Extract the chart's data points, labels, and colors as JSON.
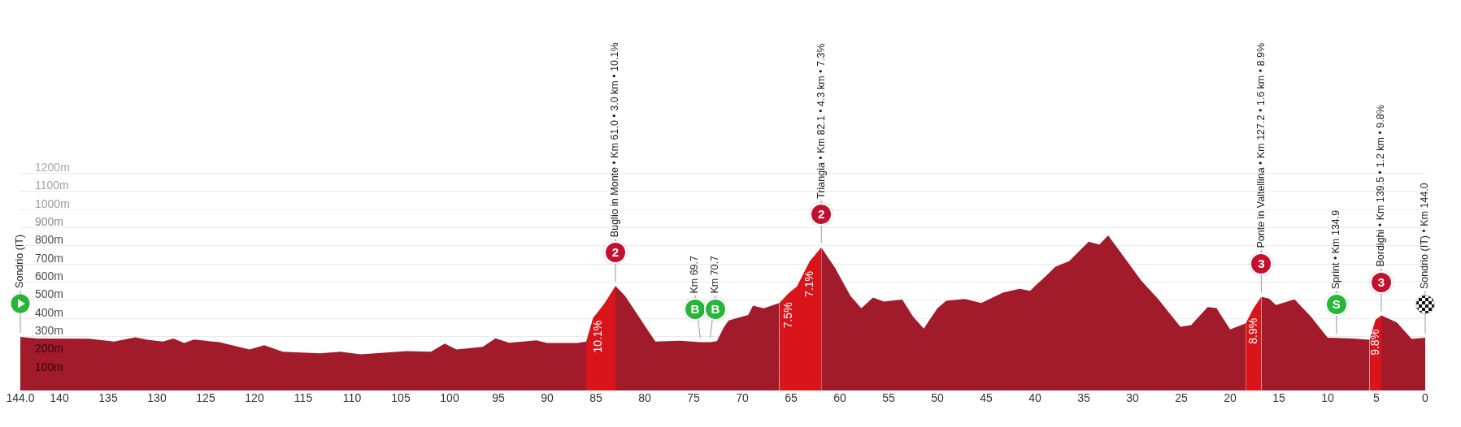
{
  "chart_data": {
    "type": "area",
    "xlim": [
      144,
      0
    ],
    "xticks": [
      {
        "value": 144,
        "label": "144.0"
      },
      140,
      135,
      130,
      125,
      120,
      115,
      110,
      105,
      100,
      95,
      90,
      85,
      80,
      75,
      70,
      65,
      60,
      55,
      50,
      45,
      40,
      35,
      30,
      25,
      20,
      15,
      10,
      5,
      0
    ],
    "ylim": [
      0,
      1200
    ],
    "yticks": [
      {
        "value": 100,
        "label": "100m"
      },
      {
        "value": 200,
        "label": "200m"
      },
      {
        "value": 300,
        "label": "300m"
      },
      {
        "value": 400,
        "label": "400m"
      },
      {
        "value": 500,
        "label": "500m"
      },
      {
        "value": 600,
        "label": "600m"
      },
      {
        "value": 700,
        "label": "700m"
      },
      {
        "value": 800,
        "label": "800m"
      },
      {
        "value": 900,
        "label": "900m"
      },
      {
        "value": 1000,
        "label": "1000m"
      },
      {
        "value": 1100,
        "label": "1100m"
      },
      {
        "value": 1200,
        "label": "1200m"
      }
    ],
    "grid": "y",
    "series": [
      {
        "color": "#a21b2b",
        "x": [
          144,
          142.3,
          136.9,
          134.4,
          132.2,
          131,
          129.4,
          128.3,
          127.2,
          126.2,
          123.6,
          120.5,
          119,
          117.1,
          113.3,
          111.2,
          109.1,
          104.4,
          101.9,
          100.5,
          99.3,
          96.6,
          95.3,
          93.9,
          91.1,
          90,
          86.9,
          86,
          85.3,
          83,
          82,
          80.8,
          79.8,
          78.9,
          76.4,
          74.3,
          73.3,
          72.6,
          71.9,
          71.4,
          69.4,
          68.9,
          67.8,
          66.2,
          64.4,
          61.9,
          60.5,
          58.9,
          57.8,
          56.6,
          55.5,
          53.6,
          52.5,
          51.4,
          50,
          49.1,
          47.2,
          45.5,
          43.3,
          41.6,
          40.5,
          39.7,
          38.9,
          37.9,
          36.5,
          34.5,
          33.4,
          32.5,
          31.4,
          29.1,
          27.4,
          25.1,
          24,
          22.3,
          21.4,
          20,
          18.4,
          17.6,
          16.8,
          16,
          15.3,
          13.4,
          11.7,
          10,
          9.1,
          7.4,
          5.7,
          5.1,
          4.5,
          2.9,
          1.4,
          0
        ],
        "values": [
          296,
          287,
          285,
          270,
          293,
          280,
          270,
          287,
          262,
          281,
          266,
          226,
          250,
          214,
          205,
          214,
          199,
          217,
          214,
          259,
          226,
          241,
          288,
          263,
          277,
          262,
          262,
          270,
          null,
          577,
          520,
          423,
          341,
          270,
          274,
          266,
          266,
          272,
          348,
          386,
          416,
          468,
          453,
          483,
          null,
          789,
          677,
          520,
          453,
          513,
          490,
          501,
          408,
          341,
          453,
          495,
          505,
          483,
          540,
          561,
          550,
          591,
          630,
          683,
          713,
          821,
          805,
          855,
          775,
          606,
          506,
          352,
          360,
          460,
          455,
          337,
          370,
          null,
          517,
          506,
          471,
          503,
          406,
          291,
          290,
          287,
          280,
          null,
          414,
          375,
          284,
          291
        ]
      },
      {
        "color": "#d9141b",
        "x": [
          86,
          85.3,
          84.7,
          84.1,
          83
        ],
        "values": [
          270,
          400,
          440,
          483,
          577
        ]
      },
      {
        "color": "#d9141b",
        "x": [
          66.2,
          65.2,
          64.4,
          63.1,
          61.9
        ],
        "values": [
          483,
          540,
          573,
          712,
          789
        ]
      },
      {
        "color": "#d9141b",
        "x": [
          18.4,
          17.6,
          16.8
        ],
        "values": [
          370,
          453,
          517
        ]
      },
      {
        "color": "#d9141b",
        "x": [
          5.7,
          5.1,
          4.5
        ],
        "values": [
          280,
          390,
          414
        ]
      }
    ],
    "annotations": [
      {
        "text": "Sondrio (IT)",
        "x": 144,
        "y": 296
      },
      {
        "text": "2",
        "x": 83,
        "y": 577
      },
      {
        "text": "Buglio in Monte • Km 61.0 • 3.0 km • 10.1%",
        "x": 83,
        "y": 577
      },
      {
        "text": "10.1%",
        "x": 84.7,
        "y": 440
      },
      {
        "text": "B",
        "x": 74.3,
        "y": 266
      },
      {
        "text": "Km 69.7",
        "x": 74.3,
        "y": 266
      },
      {
        "text": "B",
        "x": 73.3,
        "y": 266
      },
      {
        "text": "Km 70.7",
        "x": 73.3,
        "y": 266
      },
      {
        "text": "7.5%",
        "x": 65.2,
        "y": 540
      },
      {
        "text": "7.1%",
        "x": 63.1,
        "y": 712
      },
      {
        "text": "2",
        "x": 61.9,
        "y": 789
      },
      {
        "text": "Triangia • Km 82.1 • 4.3 km • 7.3%",
        "x": 61.9,
        "y": 789
      },
      {
        "text": "8.9%",
        "x": 17.6,
        "y": 453
      },
      {
        "text": "3",
        "x": 16.8,
        "y": 517
      },
      {
        "text": "Ponte in Valtellina • Km 127.2 • 1.6 km • 8.9%",
        "x": 16.8,
        "y": 517
      },
      {
        "text": "S",
        "x": 9.1,
        "y": 290
      },
      {
        "text": "Sprint • Km 134.9",
        "x": 9.1,
        "y": 290
      },
      {
        "text": "9.8%",
        "x": 5.1,
        "y": 390
      },
      {
        "text": "3",
        "x": 4.5,
        "y": 414
      },
      {
        "text": "Bordighi • Km 139.5 • 1.2 km • 9.8%",
        "x": 4.5,
        "y": 414
      },
      {
        "text": "Sondrio (IT) • Km 144.0",
        "x": 0,
        "y": 291
      }
    ]
  }
}
